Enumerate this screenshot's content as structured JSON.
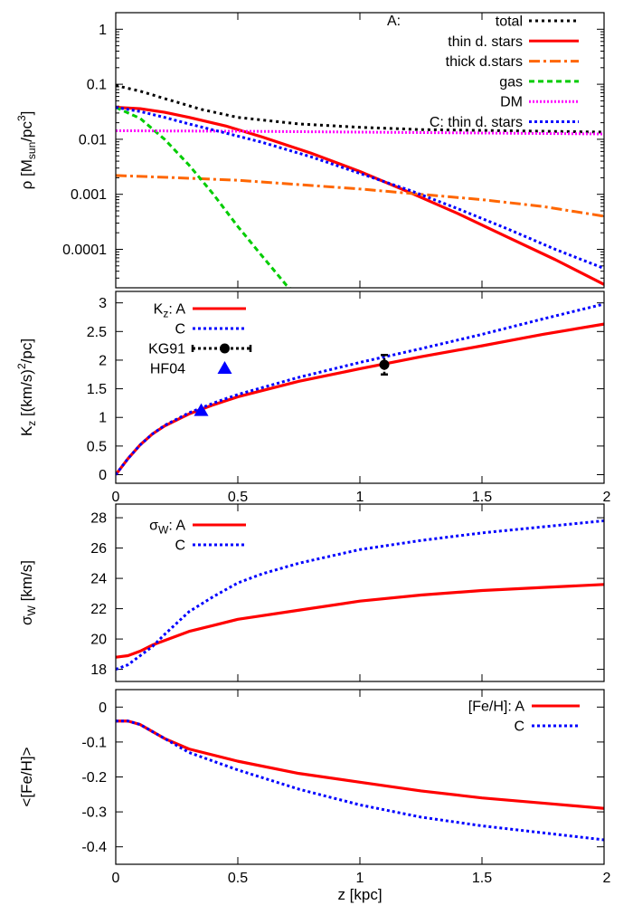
{
  "chart_data": [
    {
      "type": "line",
      "ylabel": "ρ [Msun/pc3]",
      "ylabel_parts": {
        "main": "ρ [M",
        "sub": "sun",
        "mid": "/pc",
        "sup": "3",
        "end": "]"
      },
      "yscale": "log",
      "xlim": [
        0,
        2
      ],
      "ylim": [
        2e-05,
        2
      ],
      "yticks": [
        {
          "value": 1,
          "label": "1"
        },
        {
          "value": 0.1,
          "label": "0.1"
        },
        {
          "value": 0.01,
          "label": "0.01"
        },
        {
          "value": 0.001,
          "label": "0.001"
        },
        {
          "value": 0.0001,
          "label": "0.0001"
        }
      ],
      "legend_placement": "top-right",
      "legend_prefix": {
        "top": "A:"
      },
      "series": [
        {
          "name": "total",
          "legend": "total",
          "color": "#000000",
          "dash": "3,4",
          "x": [
            0,
            0.1,
            0.2,
            0.35,
            0.5,
            0.75,
            1.0,
            1.25,
            1.5,
            1.75,
            2.0
          ],
          "y": [
            0.095,
            0.075,
            0.055,
            0.035,
            0.025,
            0.019,
            0.0165,
            0.015,
            0.0145,
            0.014,
            0.0135
          ]
        },
        {
          "name": "thin d. stars",
          "legend": "thin d. stars",
          "color": "#ff0000",
          "dash": "",
          "x": [
            0,
            0.1,
            0.2,
            0.3,
            0.45,
            0.6,
            0.8,
            1.0,
            1.2,
            1.4,
            1.6,
            1.8,
            2.0
          ],
          "y": [
            0.038,
            0.036,
            0.031,
            0.025,
            0.0175,
            0.011,
            0.0056,
            0.0026,
            0.0011,
            0.00045,
            0.00017,
            6.5e-05,
            2.3e-05
          ]
        },
        {
          "name": "thick d.stars",
          "legend": "thick d.stars",
          "color": "#ff6600",
          "dash": "12,4,3,4",
          "x": [
            0,
            0.25,
            0.5,
            0.75,
            1.0,
            1.25,
            1.5,
            1.75,
            2.0
          ],
          "y": [
            0.0022,
            0.002,
            0.0018,
            0.0015,
            0.00125,
            0.001,
            0.0008,
            0.0006,
            0.0004
          ]
        },
        {
          "name": "gas",
          "legend": "gas",
          "color": "#00cc00",
          "dash": "6,4",
          "x": [
            0,
            0.1,
            0.2,
            0.3,
            0.4,
            0.5,
            0.6,
            0.7,
            0.73
          ],
          "y": [
            0.038,
            0.024,
            0.01,
            0.0034,
            0.001,
            0.00026,
            7.5e-05,
            2.2e-05,
            1.7e-05
          ]
        },
        {
          "name": "DM",
          "legend": "DM",
          "color": "#ff00ff",
          "dash": "2,2",
          "x": [
            0,
            0.5,
            1.0,
            1.5,
            2.0
          ],
          "y": [
            0.0143,
            0.014,
            0.0135,
            0.013,
            0.0125
          ]
        },
        {
          "name": "C: thin d. stars",
          "legend": "C: thin d. stars",
          "color": "#0000ff",
          "dash": "3,3",
          "x": [
            0,
            0.1,
            0.2,
            0.3,
            0.45,
            0.6,
            0.8,
            1.0,
            1.2,
            1.4,
            1.6,
            1.8,
            2.0
          ],
          "y": [
            0.038,
            0.032,
            0.025,
            0.019,
            0.013,
            0.0088,
            0.0048,
            0.0024,
            0.0012,
            0.00055,
            0.00024,
            0.0001,
            4.5e-05
          ]
        }
      ]
    },
    {
      "type": "line",
      "ylabel": "Kz [(km/s)2/pc]",
      "ylabel_parts": {
        "main": "K",
        "sub": "z",
        "mid": " [(km/s)",
        "sup": "2",
        "end": "/pc]"
      },
      "xlim": [
        0,
        2
      ],
      "ylim": [
        -0.15,
        3.2
      ],
      "xticks": [
        {
          "value": 0,
          "label": "0"
        },
        {
          "value": 0.5,
          "label": "0.5"
        },
        {
          "value": 1,
          "label": "1"
        },
        {
          "value": 1.5,
          "label": "1.5"
        },
        {
          "value": 2,
          "label": "2"
        }
      ],
      "yticks": [
        {
          "value": 0,
          "label": "0"
        },
        {
          "value": 0.5,
          "label": "0.5"
        },
        {
          "value": 1,
          "label": "1"
        },
        {
          "value": 1.5,
          "label": "1.5"
        },
        {
          "value": 2,
          "label": "2"
        },
        {
          "value": 2.5,
          "label": "2.5"
        },
        {
          "value": 3,
          "label": "3"
        }
      ],
      "legend_placement": "top-left",
      "series": [
        {
          "name": "A",
          "legend": {
            "main": "K",
            "sub": "z",
            "end": ": A"
          },
          "color": "#ff0000",
          "dash": "",
          "x": [
            0,
            0.05,
            0.1,
            0.15,
            0.2,
            0.3,
            0.4,
            0.5,
            0.75,
            1.0,
            1.25,
            1.5,
            1.75,
            2.0
          ],
          "y": [
            0,
            0.28,
            0.52,
            0.71,
            0.85,
            1.06,
            1.22,
            1.36,
            1.63,
            1.85,
            2.06,
            2.25,
            2.45,
            2.63
          ]
        },
        {
          "name": "C",
          "legend": {
            "main": "",
            "sub": "",
            "end": "C"
          },
          "color": "#0000ff",
          "dash": "3,3",
          "x": [
            0,
            0.05,
            0.1,
            0.15,
            0.2,
            0.3,
            0.4,
            0.5,
            0.75,
            1.0,
            1.25,
            1.5,
            1.75,
            2.0
          ],
          "y": [
            0,
            0.28,
            0.52,
            0.71,
            0.86,
            1.08,
            1.25,
            1.4,
            1.7,
            1.96,
            2.2,
            2.45,
            2.72,
            2.98
          ]
        }
      ],
      "points": [
        {
          "name": "KG91",
          "x": 1.1,
          "y": 1.92,
          "yerr": 0.17,
          "color": "#000000",
          "marker": "circle"
        },
        {
          "name": "HF04",
          "x": 0.35,
          "y": 1.12,
          "color": "#0000ff",
          "marker": "triangle"
        }
      ]
    },
    {
      "type": "line",
      "ylabel": "σW [km/s]",
      "ylabel_parts": {
        "main": "σ",
        "sub": "W",
        "mid": " [km/s]",
        "sup": "",
        "end": ""
      },
      "xlim": [
        0,
        2
      ],
      "ylim": [
        17.2,
        28.9
      ],
      "yticks": [
        {
          "value": 18,
          "label": "18"
        },
        {
          "value": 20,
          "label": "20"
        },
        {
          "value": 22,
          "label": "22"
        },
        {
          "value": 24,
          "label": "24"
        },
        {
          "value": 26,
          "label": "26"
        },
        {
          "value": 28,
          "label": "28"
        }
      ],
      "legend_placement": "top-left",
      "series": [
        {
          "name": "A",
          "legend": {
            "main": "σ",
            "sub": "W",
            "end": ": A"
          },
          "color": "#ff0000",
          "dash": "",
          "x": [
            0,
            0.05,
            0.1,
            0.15,
            0.2,
            0.3,
            0.4,
            0.5,
            0.75,
            1.0,
            1.25,
            1.5,
            1.75,
            2.0
          ],
          "y": [
            18.8,
            18.9,
            19.2,
            19.6,
            19.9,
            20.5,
            20.9,
            21.3,
            21.9,
            22.5,
            22.9,
            23.2,
            23.4,
            23.6
          ]
        },
        {
          "name": "C",
          "legend": {
            "main": "",
            "sub": "",
            "end": "C"
          },
          "color": "#0000ff",
          "dash": "3,3",
          "x": [
            0,
            0.05,
            0.1,
            0.15,
            0.2,
            0.3,
            0.4,
            0.5,
            0.6,
            0.75,
            1.0,
            1.25,
            1.5,
            1.75,
            2.0
          ],
          "y": [
            18.0,
            18.3,
            18.9,
            19.5,
            20.3,
            21.8,
            22.8,
            23.7,
            24.3,
            25.0,
            25.9,
            26.5,
            27.0,
            27.4,
            27.8
          ]
        }
      ]
    },
    {
      "type": "line",
      "ylabel": "<[Fe/H]>",
      "xlabel": "z [kpc]",
      "xlim": [
        0,
        2
      ],
      "ylim": [
        -0.45,
        0.05
      ],
      "xticks": [
        {
          "value": 0,
          "label": "0"
        },
        {
          "value": 0.5,
          "label": "0.5"
        },
        {
          "value": 1,
          "label": "1"
        },
        {
          "value": 1.5,
          "label": "1.5"
        },
        {
          "value": 2,
          "label": "2"
        }
      ],
      "yticks": [
        {
          "value": 0,
          "label": "0"
        },
        {
          "value": -0.1,
          "label": "-0.1"
        },
        {
          "value": -0.2,
          "label": "-0.2"
        },
        {
          "value": -0.3,
          "label": "-0.3"
        },
        {
          "value": -0.4,
          "label": "-0.4"
        }
      ],
      "legend_placement": "top-right",
      "series": [
        {
          "name": "[Fe/H]: A",
          "legend": "[Fe/H]: A",
          "color": "#ff0000",
          "dash": "",
          "x": [
            0,
            0.05,
            0.1,
            0.15,
            0.2,
            0.3,
            0.5,
            0.75,
            1.0,
            1.25,
            1.5,
            1.75,
            2.0
          ],
          "y": [
            -0.04,
            -0.04,
            -0.05,
            -0.07,
            -0.09,
            -0.12,
            -0.155,
            -0.19,
            -0.215,
            -0.24,
            -0.26,
            -0.275,
            -0.29
          ]
        },
        {
          "name": "C",
          "legend": "C",
          "color": "#0000ff",
          "dash": "3,3",
          "x": [
            0,
            0.05,
            0.1,
            0.15,
            0.2,
            0.3,
            0.5,
            0.75,
            1.0,
            1.25,
            1.5,
            1.75,
            2.0
          ],
          "y": [
            -0.04,
            -0.04,
            -0.05,
            -0.07,
            -0.09,
            -0.13,
            -0.18,
            -0.235,
            -0.28,
            -0.315,
            -0.34,
            -0.36,
            -0.38
          ]
        }
      ]
    }
  ]
}
